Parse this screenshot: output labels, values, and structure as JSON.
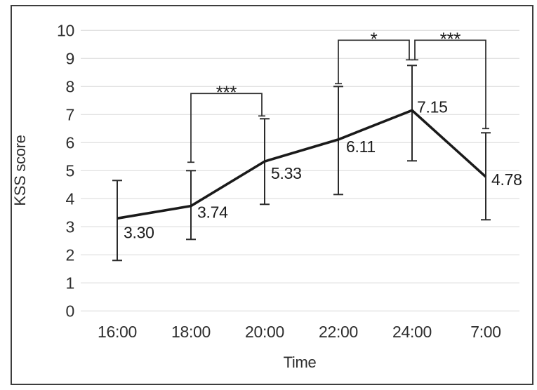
{
  "figure": {
    "background": "#ffffff",
    "border_color": "#3d3d3d"
  },
  "chart_data": {
    "type": "line",
    "title": "",
    "xlabel": "Time",
    "ylabel": "KSS score",
    "categories": [
      "16:00",
      "18:00",
      "20:00",
      "22:00",
      "24:00",
      "7:00"
    ],
    "series": [
      {
        "name": "KSS score",
        "values": [
          3.3,
          3.74,
          5.33,
          6.11,
          7.15,
          4.78
        ],
        "value_labels": [
          "3.30",
          "3.74",
          "5.33",
          "6.11",
          "7.15",
          "4.78"
        ],
        "error_upper": [
          4.65,
          5.0,
          6.85,
          8.0,
          8.75,
          6.35
        ],
        "error_lower": [
          1.8,
          2.55,
          3.8,
          4.15,
          5.35,
          3.25
        ]
      }
    ],
    "ylim": [
      0,
      10
    ],
    "ytick_labels": [
      "0",
      "1",
      "2",
      "3",
      "4",
      "5",
      "6",
      "7",
      "8",
      "9",
      "10"
    ],
    "grid": true,
    "legend": "none",
    "colors": {
      "line": "#1a1a1a",
      "error_bar": "#2b2b2b",
      "grid": "#d8d8d8",
      "text": "#2e2e2e",
      "bracket": "#2b2b2b"
    },
    "significance": [
      {
        "between": [
          "18:00",
          "20:00"
        ],
        "label": "***",
        "bar_y": 7.75,
        "leg1_end": 5.3,
        "leg2_end": 6.95
      },
      {
        "between": [
          "22:00",
          "24:00"
        ],
        "label": "*",
        "bar_y": 9.65,
        "leg1_end": 8.1,
        "leg2_end": 8.95
      },
      {
        "between": [
          "24:00",
          "7:00"
        ],
        "label": "***",
        "bar_y": 9.65,
        "leg1_end": 8.95,
        "leg2_end": 6.5
      }
    ]
  }
}
